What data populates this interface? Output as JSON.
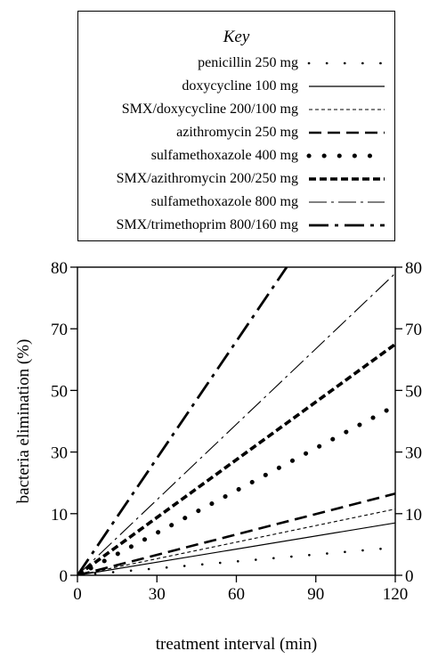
{
  "chart_data": {
    "type": "line",
    "legend_title": "Key",
    "legend_position": "top, above plot",
    "xlabel": "treatment interval (min)",
    "ylabel": "bacteria elimination (%)",
    "x_ticks": [
      "0",
      "30",
      "60",
      "90",
      "120"
    ],
    "y_ticks": [
      "0",
      "10",
      "30",
      "50",
      "70",
      "80"
    ],
    "y_tick_values": [
      0,
      10,
      30,
      50,
      70,
      80
    ],
    "note": "",
    "xlim": [
      0,
      120
    ],
    "grid": false,
    "series": [
      {
        "name": "penicillin 250 mg",
        "style": "sparse-dots",
        "x": [
          0,
          120
        ],
        "y": [
          0,
          4.5
        ]
      },
      {
        "name": "doxycycline 100 mg",
        "style": "solid-thin",
        "x": [
          0,
          120
        ],
        "y": [
          0,
          8.5
        ]
      },
      {
        "name": "SMX/doxycycline 200/100 mg",
        "style": "short-dash-thin",
        "x": [
          0,
          120
        ],
        "y": [
          0,
          11.5
        ]
      },
      {
        "name": "azithromycin 250 mg",
        "style": "long-dash-thick",
        "x": [
          0,
          120
        ],
        "y": [
          0,
          16.5
        ]
      },
      {
        "name": "sulfamethoxazole 400 mg",
        "style": "big-dots",
        "x": [
          0,
          120
        ],
        "y": [
          0,
          45
        ]
      },
      {
        "name": "SMX/azithromycin 200/250 mg",
        "style": "dash-extra-thick",
        "x": [
          0,
          120
        ],
        "y": [
          0,
          65
        ]
      },
      {
        "name": "sulfamethoxazole 800 mg",
        "style": "dash-dot-thin",
        "x": [
          0,
          120
        ],
        "y": [
          0,
          79
        ]
      },
      {
        "name": "SMX/trimethoprim 800/160 mg",
        "style": "dash-dot-thick",
        "x": [
          0,
          79
        ],
        "y": [
          0,
          80
        ]
      }
    ]
  }
}
